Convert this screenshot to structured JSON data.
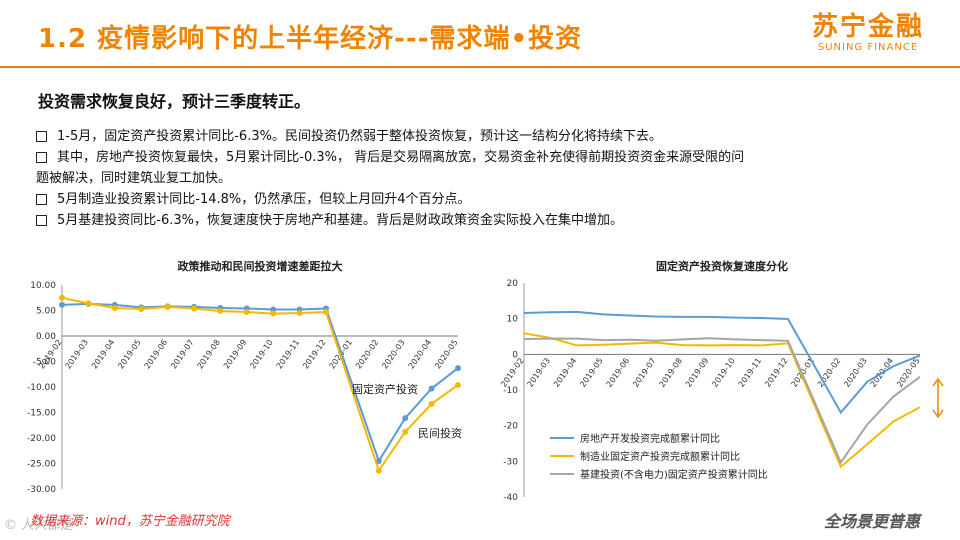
{
  "header": {
    "title": "1.2 疫情影响下的上半年经济---需求端•投资",
    "logo_cn": "苏宁金融",
    "logo_en": "SUNING FINANCE"
  },
  "subtitle": "投资需求恢复良好，预计三季度转正。",
  "bullets": [
    {
      "text": "1-5月，固定资产投资累计同比-6.3%。民间投资仍然弱于整体投资恢复，预计这一结构分化将持续下去。",
      "cont": ""
    },
    {
      "text": "其中，房地产投资恢复最快，5月累计同比-0.3%， 背后是交易隔离放宽，交易资金补充使得前期投资资金来源受限的问",
      "cont": "题被解决，同时建筑业复工加快。"
    },
    {
      "text": "5月制造业投资累计同比-14.8%，仍然承压，但较上月回升4个百分点。",
      "cont": ""
    },
    {
      "text": "5月基建投资同比-6.3%，恢复速度快于房地产和基建。背后是财政政策资金实际投入在集中增加。",
      "cont": ""
    }
  ],
  "footer": {
    "source": "数据来源：wind，苏宁金融研究院",
    "slogan": "全场景更普惠",
    "watermark": "© 人人都是"
  },
  "chart_data": [
    {
      "type": "line",
      "title": "政策推动和民间投资增速差距拉大",
      "categories": [
        "2019-02",
        "2019-03",
        "2019-04",
        "2019-05",
        "2019-06",
        "2019-07",
        "2019-08",
        "2019-09",
        "2019-10",
        "2019-11",
        "2019-12",
        "2020-01",
        "2020-02",
        "2020-03",
        "2020-04",
        "2020-05"
      ],
      "ylim": [
        -30,
        10
      ],
      "yticks": [
        "10.00",
        "5.00",
        "0.00",
        "-5.00",
        "-10.00",
        "-15.00",
        "-20.00",
        "-25.00",
        "-30.00"
      ],
      "series": [
        {
          "name": "固定资产投资",
          "color": "#5b9bd5",
          "values": [
            6.1,
            6.3,
            6.1,
            5.6,
            5.8,
            5.7,
            5.5,
            5.4,
            5.2,
            5.2,
            5.4,
            null,
            -24.5,
            -16.1,
            -10.3,
            -6.3
          ]
        },
        {
          "name": "民间投资",
          "color": "#f5b800",
          "values": [
            7.5,
            6.4,
            5.5,
            5.3,
            5.7,
            5.4,
            4.9,
            4.7,
            4.4,
            4.5,
            4.7,
            null,
            -26.4,
            -18.8,
            -13.3,
            -9.6
          ]
        }
      ],
      "annotations": [
        "固定资产投资",
        "民间投资"
      ]
    },
    {
      "type": "line",
      "title": "固定资产投资恢复速度分化",
      "categories": [
        "2019-02",
        "2019-03",
        "2019-04",
        "2019-05",
        "2019-06",
        "2019-07",
        "2019-08",
        "2019-09",
        "2019-10",
        "2019-11",
        "2019-12",
        "2020-01",
        "2020-02",
        "2020-03",
        "2020-04",
        "2020-05"
      ],
      "ylim": [
        -40,
        20
      ],
      "yticks": [
        "20",
        "10",
        "0",
        "-10",
        "-20",
        "-30",
        "-40"
      ],
      "legend_position": "bottom-left",
      "series": [
        {
          "name": "房地产开发投资完成额累计同比",
          "color": "#5b9bd5",
          "values": [
            11.6,
            11.8,
            11.9,
            11.2,
            10.9,
            10.6,
            10.5,
            10.5,
            10.3,
            10.2,
            9.9,
            null,
            -16.3,
            -7.7,
            -3.3,
            -0.3
          ]
        },
        {
          "name": "制造业固定资产投资完成额累计同比",
          "color": "#f5b800",
          "values": [
            5.9,
            4.6,
            2.5,
            2.7,
            3.0,
            3.3,
            2.6,
            2.5,
            2.6,
            2.5,
            3.1,
            null,
            -31.5,
            -25.2,
            -18.8,
            -14.8
          ]
        },
        {
          "name": "基建投资(不含电力)固定资产投资累计同比",
          "color": "#a5a5a5",
          "values": [
            4.3,
            4.4,
            4.4,
            4.0,
            4.1,
            3.8,
            4.2,
            4.5,
            4.2,
            4.0,
            3.8,
            null,
            -30.3,
            -19.7,
            -11.8,
            -6.3
          ]
        }
      ]
    }
  ]
}
